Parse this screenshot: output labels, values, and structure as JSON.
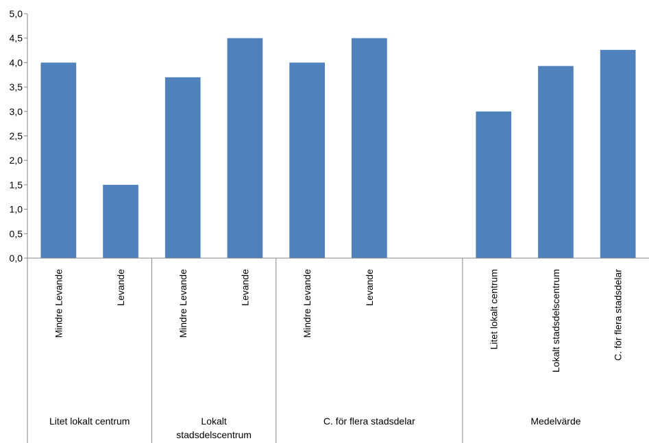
{
  "chart_data": {
    "type": "bar",
    "ylim": [
      0,
      5
    ],
    "ytick_labels": [
      "0,0",
      "0,5",
      "1,0",
      "1,5",
      "2,0",
      "2,5",
      "3,0",
      "3,5",
      "4,0",
      "4,5",
      "5,0"
    ],
    "grid": false,
    "bar_color": "#4F81BD",
    "groups": [
      {
        "label": "Litet lokalt centrum",
        "categories": [
          "Mindre Levande",
          "Levande"
        ],
        "values": [
          4.0,
          1.5
        ]
      },
      {
        "label": "Lokalt stadsdelscentrum",
        "label_lines": [
          "Lokalt",
          "stadsdelscentrum"
        ],
        "categories": [
          "Mindre Levande",
          "Levande"
        ],
        "values": [
          3.7,
          4.5
        ]
      },
      {
        "label": "C. för flera stadsdelar",
        "categories": [
          "Mindre Levande",
          "Levande",
          ""
        ],
        "values": [
          4.0,
          4.5,
          null
        ]
      },
      {
        "label": "Medelvärde",
        "categories": [
          "Litet lokalt centrum",
          "Lokalt stadsdelscentrum",
          "C. för flera stadsdelar"
        ],
        "values": [
          3.0,
          3.93,
          4.26
        ]
      }
    ]
  }
}
